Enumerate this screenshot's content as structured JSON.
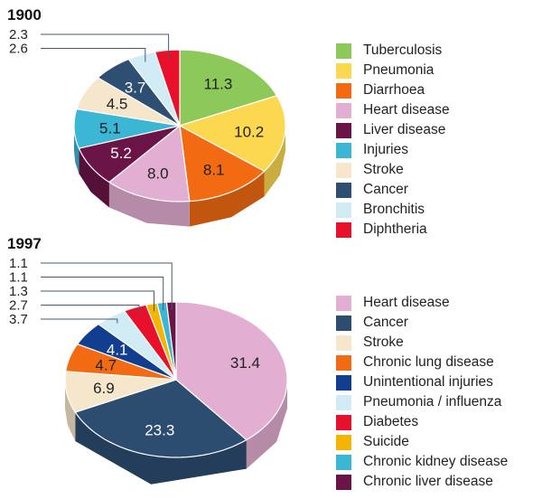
{
  "chart_data": [
    {
      "type": "pie",
      "title": "1900",
      "categories": [
        "Tuberculosis",
        "Pneumonia",
        "Diarrhoea",
        "Heart disease",
        "Liver disease",
        "Injuries",
        "Stroke",
        "Cancer",
        "Bronchitis",
        "Diphtheria"
      ],
      "values": [
        11.3,
        10.2,
        8.1,
        8.0,
        5.2,
        5.1,
        4.5,
        3.7,
        2.6,
        2.3
      ],
      "labels": [
        "11.3",
        "10.2",
        "8.1",
        "8.0",
        "5.2",
        "5.1",
        "4.5",
        "3.7",
        "2.6",
        "2.3"
      ],
      "colors": [
        "#8cc85a",
        "#fcd850",
        "#f26b12",
        "#e2aed2",
        "#6a1448",
        "#3bb6d4",
        "#f6e6cc",
        "#2e4e72",
        "#d2ecf6",
        "#e8102a"
      ],
      "legend": "right",
      "style": "3d"
    },
    {
      "type": "pie",
      "title": "1997",
      "categories": [
        "Heart disease",
        "Cancer",
        "Stroke",
        "Chronic lung disease",
        "Unintentional injuries",
        "Pneumonia / influenza",
        "Diabetes",
        "Suicide",
        "Chronic kidney disease",
        "Chronic liver disease"
      ],
      "values": [
        31.4,
        23.3,
        6.9,
        4.7,
        4.1,
        3.7,
        2.7,
        1.3,
        1.1,
        1.1
      ],
      "labels": [
        "31.4",
        "23.3",
        "6.9",
        "4.7",
        "4.1",
        "3.7",
        "2.7",
        "1.3",
        "1.1",
        "1.1"
      ],
      "colors": [
        "#e2aed2",
        "#2c4c70",
        "#f6e6cc",
        "#f26b12",
        "#123e90",
        "#d2ecf6",
        "#e8102a",
        "#f4b400",
        "#3bb6d4",
        "#6a1448"
      ],
      "legend": "right",
      "style": "3d"
    }
  ]
}
